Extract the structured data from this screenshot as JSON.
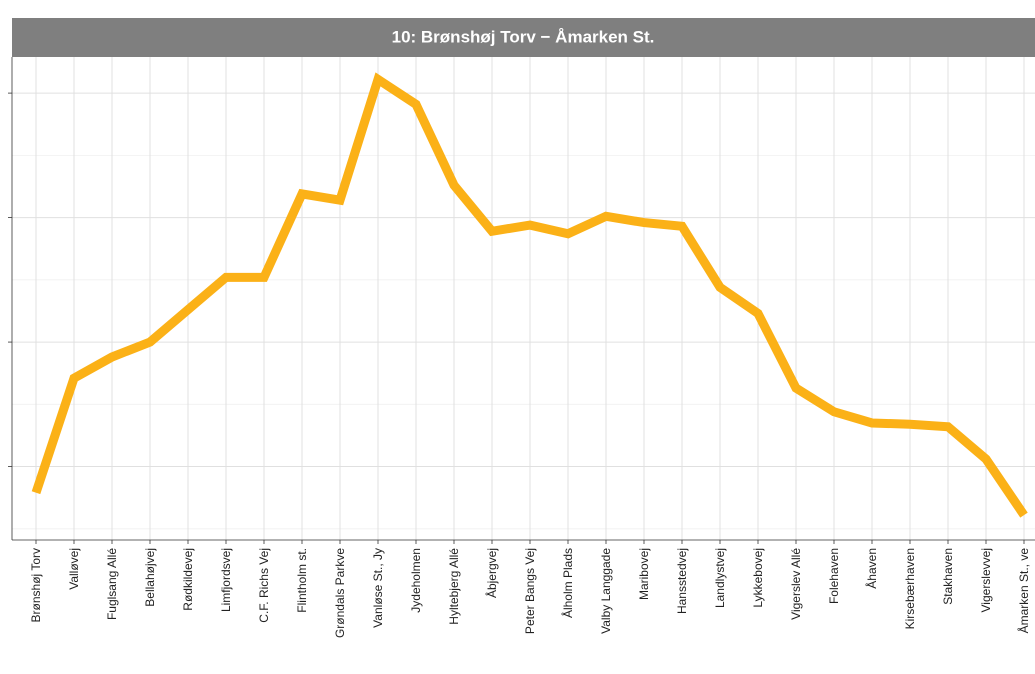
{
  "chart_data": {
    "type": "line",
    "title": "10: Brønshøj Torv − Åmarken St.",
    "categories": [
      "Brønshøj Torv",
      "Valløvej",
      "Fuglsang Allé",
      "Bellahøjvej",
      "Rødkildevej",
      "Limfjordsvej",
      "C.F. Richs Vej",
      "Flintholm st.",
      "Grøndals Parkve",
      "Vanløse St., Jy",
      "Jydeholmen",
      "Hyltebjerg Allé",
      "Åbjergvej",
      "Peter Bangs Vej",
      "Ålholm Plads",
      "Valby Langgade",
      "Maribovej",
      "Hansstedvej",
      "Landlystvej",
      "Lykkebovej",
      "Vigerslev Allé",
      "Folehaven",
      "Åhaven",
      "Kirsebærhaven",
      "Stakhaven",
      "Vigerslevvej",
      "Åmarken St., ve"
    ],
    "values": [
      0.79,
      1.71,
      1.88,
      2.0,
      2.26,
      2.52,
      2.52,
      3.19,
      3.14,
      4.11,
      3.91,
      3.26,
      2.89,
      2.94,
      2.87,
      3.01,
      2.96,
      2.93,
      2.44,
      2.23,
      1.63,
      1.44,
      1.35,
      1.34,
      1.32,
      1.06,
      0.61
    ],
    "color": "#fbb117",
    "ylim": [
      0.41,
      4.29
    ],
    "yticks": [
      1,
      2,
      3,
      4
    ],
    "grid": true
  }
}
